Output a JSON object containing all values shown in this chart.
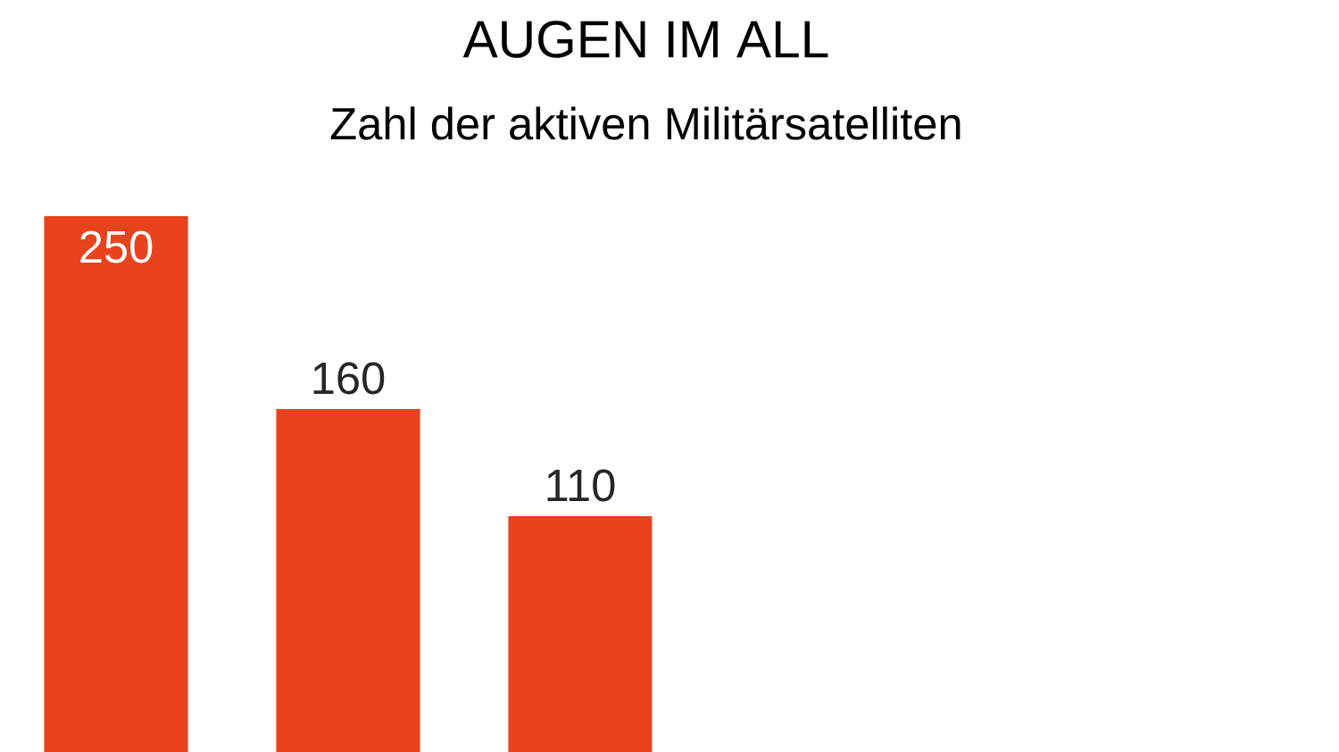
{
  "chart_data": {
    "type": "bar",
    "title": "AUGEN IM ALL",
    "subtitle": "Zahl der aktiven Militärsatelliten",
    "categories": [
      null,
      null,
      null
    ],
    "values": [
      250,
      160,
      110
    ],
    "color": "#e8431c",
    "data_labels": true
  }
}
